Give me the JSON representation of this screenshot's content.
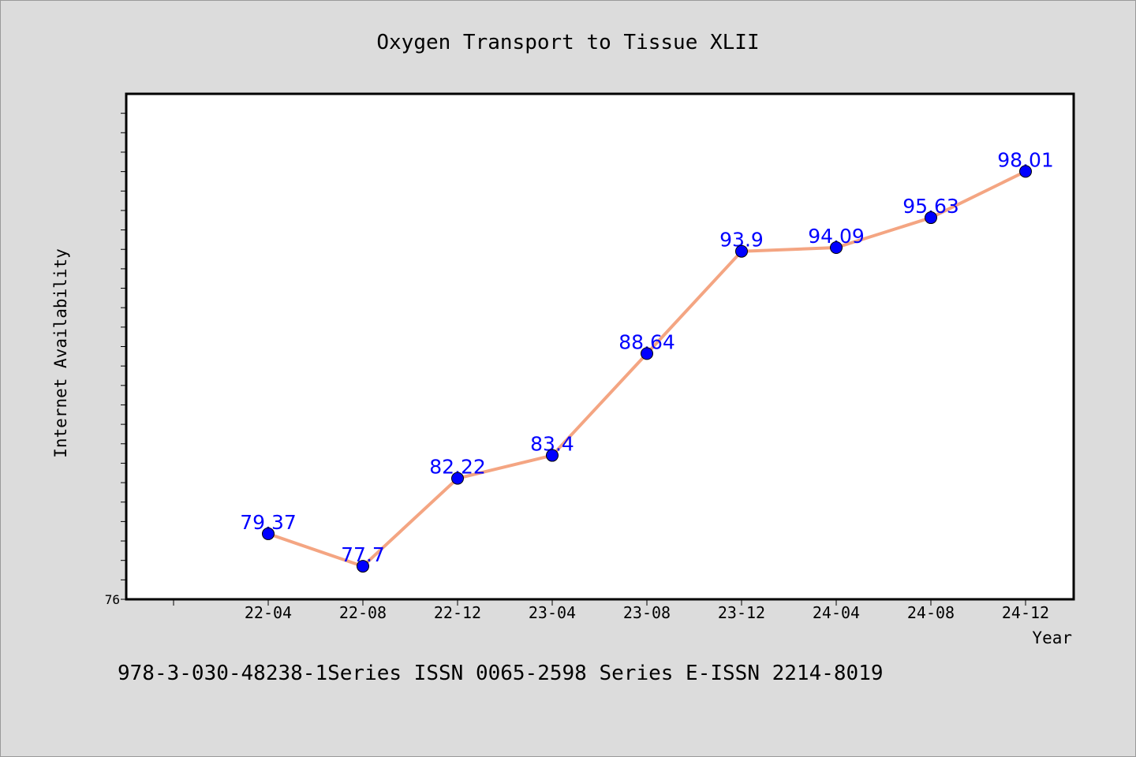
{
  "chart_data": {
    "type": "line",
    "title": "Oxygen Transport to Tissue XLII",
    "xlabel": "Year",
    "ylabel": "Internet Availability",
    "categories": [
      "22-04",
      "22-08",
      "22-12",
      "23-04",
      "23-08",
      "23-12",
      "24-04",
      "24-08",
      "24-12"
    ],
    "series": [
      {
        "values": [
          79.37,
          77.7,
          82.22,
          83.4,
          88.64,
          93.9,
          94.09,
          95.63,
          98.01
        ],
        "labels": [
          "79.37",
          "77.7",
          "82.22",
          "83.4",
          "88.64",
          "93.9",
          "94.09",
          "95.63",
          "98.01"
        ]
      }
    ],
    "ylim": [
      76,
      102
    ],
    "y_tick_label": "76",
    "grid": false,
    "legend": "none",
    "line_color": "#f4a582",
    "marker_color": "#0000ff",
    "label_color": "#0000ff"
  },
  "footer": {
    "text": "978-3-030-48238-1Series ISSN 0065-2598 Series E-ISSN 2214-8019"
  }
}
